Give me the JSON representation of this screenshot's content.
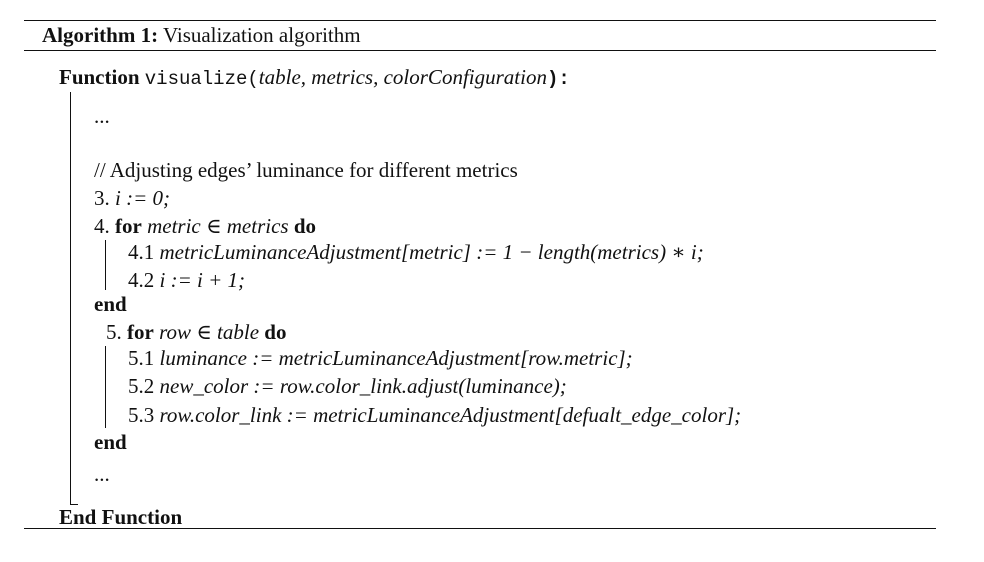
{
  "algorithm": {
    "label": "Algorithm 1:",
    "title": "Visualization algorithm"
  },
  "function": {
    "keyword": "Function",
    "name": "visualize",
    "open_paren": "(",
    "params": "table, metrics, colorConfiguration",
    "close": "):",
    "end": "End Function"
  },
  "lines": {
    "ellipsis_top": "...",
    "comment": "// Adjusting edges’ luminance for different metrics",
    "l3_num": "3.",
    "l3_code": "i := 0;",
    "l4_num": "4.",
    "l4_for": "for",
    "l4_cond": "metric ∈ metrics",
    "l4_do": "do",
    "l41_num": "4.1",
    "l41_code": "metricLuminanceAdjustment[metric] := 1 − length(metrics) ∗ i;",
    "l42_num": "4.2",
    "l42_code": "i := i + 1;",
    "end1": "end",
    "l5_num": "5.",
    "l5_for": "for",
    "l5_cond": "row ∈ table",
    "l5_do": "do",
    "l51_num": "5.1",
    "l51_code": "luminance := metricLuminanceAdjustment[row.metric];",
    "l52_num": "5.2",
    "l52_code": "new_color := row.color_link.adjust(luminance);",
    "l53_num": "5.3",
    "l53_code": "row.color_link := metricLuminanceAdjustment[defualt_edge_color];",
    "end2": "end",
    "ellipsis_bottom": "..."
  }
}
